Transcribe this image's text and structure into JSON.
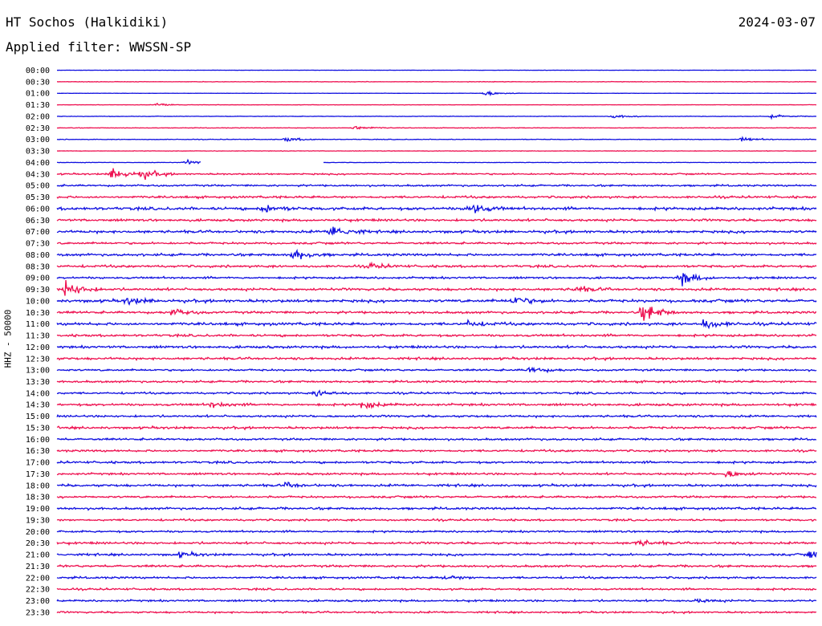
{
  "header": {
    "station": "HT Sochos (Halkidiki)",
    "date": "2024-03-07",
    "filter": "Applied filter: WWSSN-SP"
  },
  "colors": {
    "blue": "#1010e0",
    "red": "#ee1050"
  },
  "chart_data": {
    "type": "line",
    "title": "HT Sochos (Halkidiki)",
    "subtitle": "Applied filter: WWSSN-SP",
    "ylabel": "HHZ - 50000",
    "xlabel": "",
    "trace_labels": [
      "00:00",
      "00:30",
      "01:00",
      "01:30",
      "02:00",
      "02:30",
      "03:00",
      "03:30",
      "04:00",
      "04:30",
      "05:00",
      "05:30",
      "06:00",
      "06:30",
      "07:00",
      "07:30",
      "08:00",
      "08:30",
      "09:00",
      "09:30",
      "10:00",
      "10:30",
      "11:00",
      "11:30",
      "12:00",
      "12:30",
      "13:00",
      "13:30",
      "14:00",
      "14:30",
      "15:00",
      "15:30",
      "16:00",
      "16:30",
      "17:00",
      "17:30",
      "18:00",
      "18:30",
      "19:00",
      "19:30",
      "20:00",
      "20:30",
      "21:00",
      "21:30",
      "22:00",
      "22:30",
      "23:00",
      "23:30"
    ],
    "trace_colors": [
      "blue",
      "red"
    ],
    "noise_level": [
      0.2,
      0.4,
      0.2,
      0.3,
      0.4,
      0.5,
      0.5,
      0.4,
      0.4,
      1.2,
      1.4,
      1.7,
      2.2,
      1.8,
      2.0,
      1.6,
      1.9,
      1.8,
      1.6,
      1.9,
      2.2,
      1.8,
      2.1,
      1.8,
      1.9,
      1.8,
      1.5,
      1.6,
      1.5,
      1.8,
      1.6,
      1.8,
      1.6,
      1.6,
      1.7,
      1.6,
      1.8,
      1.6,
      1.8,
      1.5,
      1.5,
      1.7,
      1.7,
      1.7,
      1.6,
      1.5,
      1.5,
      1.4
    ],
    "events": [
      {
        "trace": "01:00",
        "t": 0.56,
        "amp": 5
      },
      {
        "trace": "01:30",
        "t": 0.13,
        "amp": 3
      },
      {
        "trace": "02:00",
        "t": 0.73,
        "amp": 4
      },
      {
        "trace": "02:00",
        "t": 0.94,
        "amp": 3
      },
      {
        "trace": "02:30",
        "t": 0.39,
        "amp": 4
      },
      {
        "trace": "03:00",
        "t": 0.3,
        "amp": 4
      },
      {
        "trace": "03:00",
        "t": 0.9,
        "amp": 4
      },
      {
        "trace": "04:00",
        "t": 0.17,
        "amp": 4
      },
      {
        "trace": "04:30",
        "t": 0.07,
        "amp": 11
      },
      {
        "trace": "04:30",
        "t": 0.11,
        "amp": 9
      },
      {
        "trace": "06:00",
        "t": 0.27,
        "amp": 8
      },
      {
        "trace": "06:00",
        "t": 0.54,
        "amp": 12
      },
      {
        "trace": "07:00",
        "t": 0.36,
        "amp": 14
      },
      {
        "trace": "08:00",
        "t": 0.31,
        "amp": 10
      },
      {
        "trace": "08:30",
        "t": 0.41,
        "amp": 5
      },
      {
        "trace": "09:00",
        "t": 0.82,
        "amp": 13
      },
      {
        "trace": "09:30",
        "t": 0.01,
        "amp": 16
      },
      {
        "trace": "09:30",
        "t": 0.68,
        "amp": 6
      },
      {
        "trace": "10:00",
        "t": 0.6,
        "amp": 8
      },
      {
        "trace": "10:00",
        "t": 0.09,
        "amp": 7
      },
      {
        "trace": "10:30",
        "t": 0.77,
        "amp": 18
      },
      {
        "trace": "10:30",
        "t": 0.15,
        "amp": 6
      },
      {
        "trace": "11:00",
        "t": 0.85,
        "amp": 9
      },
      {
        "trace": "11:00",
        "t": 0.54,
        "amp": 5
      },
      {
        "trace": "13:00",
        "t": 0.62,
        "amp": 6
      },
      {
        "trace": "14:00",
        "t": 0.34,
        "amp": 6
      },
      {
        "trace": "14:30",
        "t": 0.4,
        "amp": 7
      },
      {
        "trace": "14:30",
        "t": 0.2,
        "amp": 5
      },
      {
        "trace": "17:30",
        "t": 0.88,
        "amp": 6
      },
      {
        "trace": "18:00",
        "t": 0.3,
        "amp": 4
      },
      {
        "trace": "20:30",
        "t": 0.76,
        "amp": 7
      },
      {
        "trace": "21:00",
        "t": 0.99,
        "amp": 7
      },
      {
        "trace": "21:00",
        "t": 0.16,
        "amp": 4
      },
      {
        "trace": "22:00",
        "t": 0.51,
        "amp": 4
      },
      {
        "trace": "23:00",
        "t": 0.84,
        "amp": 3
      }
    ],
    "gaps": [
      {
        "trace": "04:00",
        "t0": 0.19,
        "t1": 0.35
      }
    ],
    "grid": false,
    "legend": "none"
  }
}
